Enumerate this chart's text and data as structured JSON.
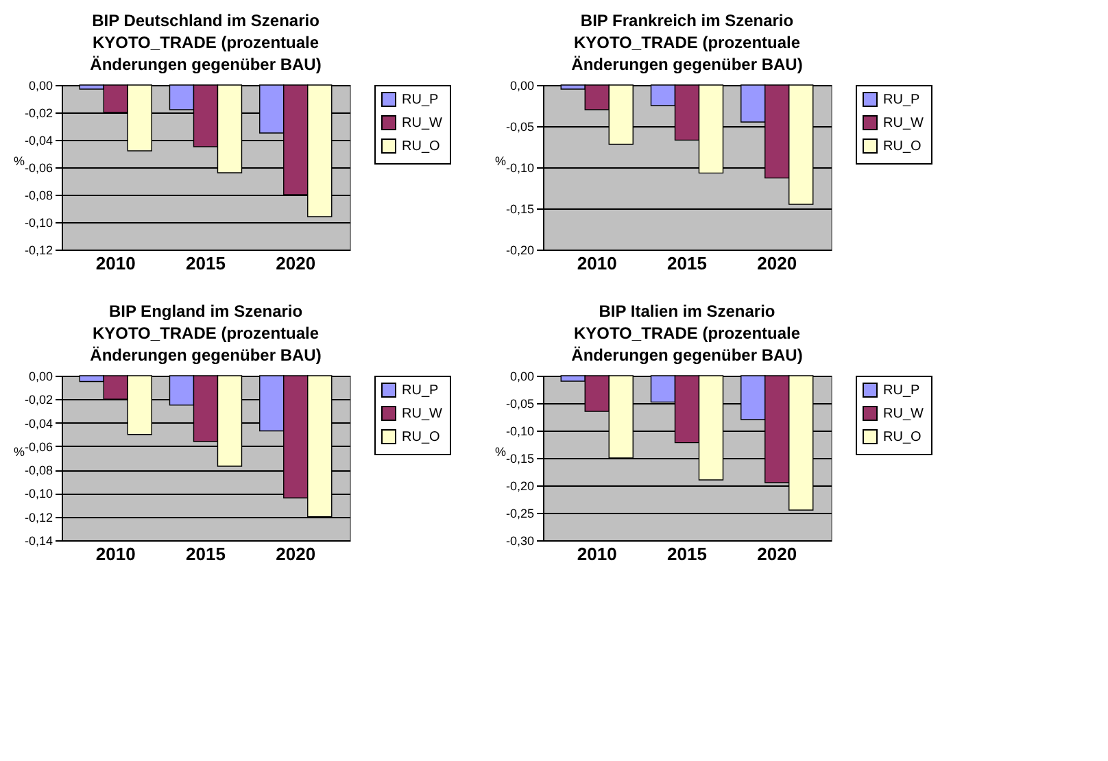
{
  "chart_data": [
    {
      "type": "bar",
      "title": "BIP Deutschland im Szenario KYOTO_TRADE (prozentuale Änderungen gegenüber BAU)",
      "ylabel": "%",
      "categories": [
        "2010",
        "2015",
        "2020"
      ],
      "series": [
        {
          "name": "RU_P",
          "color": "#9999ff",
          "values": [
            -0.003,
            -0.018,
            -0.035
          ]
        },
        {
          "name": "RU_W",
          "color": "#993366",
          "values": [
            -0.02,
            -0.045,
            -0.08
          ]
        },
        {
          "name": "RU_O",
          "color": "#ffffcc",
          "values": [
            -0.048,
            -0.064,
            -0.096
          ]
        }
      ],
      "ylim": [
        -0.12,
        0
      ],
      "yticks": [
        {
          "value": -0.12,
          "label": "-0,12"
        },
        {
          "value": -0.1,
          "label": "-0,10"
        },
        {
          "value": -0.08,
          "label": "-0,08"
        },
        {
          "value": -0.06,
          "label": "-0,06"
        },
        {
          "value": -0.04,
          "label": "-0,04"
        },
        {
          "value": -0.02,
          "label": "-0,02"
        },
        {
          "value": 0,
          "label": "0,00"
        }
      ],
      "grid": "y",
      "legend": "right"
    },
    {
      "type": "bar",
      "title": "BIP Frankreich im Szenario KYOTO_TRADE (prozentuale Änderungen gegenüber BAU)",
      "ylabel": "%",
      "categories": [
        "2010",
        "2015",
        "2020"
      ],
      "series": [
        {
          "name": "RU_P",
          "color": "#9999ff",
          "values": [
            -0.005,
            -0.025,
            -0.045
          ]
        },
        {
          "name": "RU_W",
          "color": "#993366",
          "values": [
            -0.03,
            -0.067,
            -0.113
          ]
        },
        {
          "name": "RU_O",
          "color": "#ffffcc",
          "values": [
            -0.072,
            -0.107,
            -0.145
          ]
        }
      ],
      "ylim": [
        -0.2,
        0
      ],
      "yticks": [
        {
          "value": -0.2,
          "label": "-0,20"
        },
        {
          "value": -0.15,
          "label": "-0,15"
        },
        {
          "value": -0.1,
          "label": "-0,10"
        },
        {
          "value": -0.05,
          "label": "-0,05"
        },
        {
          "value": 0,
          "label": "0,00"
        }
      ],
      "grid": "y",
      "legend": "right"
    },
    {
      "type": "bar",
      "title": "BIP England im Szenario KYOTO_TRADE (prozentuale Änderungen gegenüber BAU)",
      "ylabel": "%",
      "categories": [
        "2010",
        "2015",
        "2020"
      ],
      "series": [
        {
          "name": "RU_P",
          "color": "#9999ff",
          "values": [
            -0.005,
            -0.025,
            -0.047
          ]
        },
        {
          "name": "RU_W",
          "color": "#993366",
          "values": [
            -0.02,
            -0.056,
            -0.104
          ]
        },
        {
          "name": "RU_O",
          "color": "#ffffcc",
          "values": [
            -0.05,
            -0.077,
            -0.12
          ]
        }
      ],
      "ylim": [
        -0.14,
        0
      ],
      "yticks": [
        {
          "value": -0.14,
          "label": "-0,14"
        },
        {
          "value": -0.12,
          "label": "-0,12"
        },
        {
          "value": -0.1,
          "label": "-0,10"
        },
        {
          "value": -0.08,
          "label": "-0,08"
        },
        {
          "value": -0.06,
          "label": "-0,06"
        },
        {
          "value": -0.04,
          "label": "-0,04"
        },
        {
          "value": -0.02,
          "label": "-0,02"
        },
        {
          "value": 0,
          "label": "0,00"
        }
      ],
      "grid": "y",
      "legend": "right"
    },
    {
      "type": "bar",
      "title": "BIP Italien im Szenario KYOTO_TRADE (prozentuale Änderungen gegenüber BAU)",
      "ylabel": "%",
      "categories": [
        "2010",
        "2015",
        "2020"
      ],
      "series": [
        {
          "name": "RU_P",
          "color": "#9999ff",
          "values": [
            -0.01,
            -0.048,
            -0.08
          ]
        },
        {
          "name": "RU_W",
          "color": "#993366",
          "values": [
            -0.065,
            -0.122,
            -0.195
          ]
        },
        {
          "name": "RU_O",
          "color": "#ffffcc",
          "values": [
            -0.15,
            -0.19,
            -0.245
          ]
        }
      ],
      "ylim": [
        -0.3,
        0
      ],
      "yticks": [
        {
          "value": -0.3,
          "label": "-0,30"
        },
        {
          "value": -0.25,
          "label": "-0,25"
        },
        {
          "value": -0.2,
          "label": "-0,20"
        },
        {
          "value": -0.15,
          "label": "-0,15"
        },
        {
          "value": -0.1,
          "label": "-0,10"
        },
        {
          "value": -0.05,
          "label": "-0,05"
        },
        {
          "value": 0,
          "label": "0,00"
        }
      ],
      "grid": "y",
      "legend": "right"
    }
  ]
}
